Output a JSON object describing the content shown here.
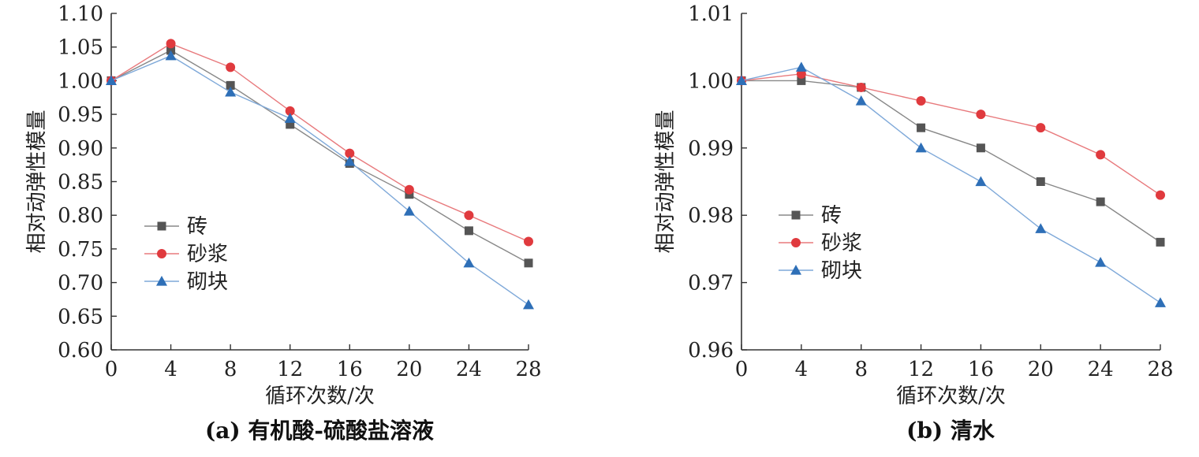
{
  "chart_data": [
    {
      "type": "line",
      "caption": "(a) 有机酸-硫酸盐溶液",
      "xlabel": "循环次数/次",
      "ylabel": "相对动弹性模量",
      "x": [
        0,
        4,
        8,
        12,
        16,
        20,
        24,
        28
      ],
      "xlim": [
        0,
        28
      ],
      "ylim": [
        0.6,
        1.1
      ],
      "xticks": [
        "0",
        "4",
        "8",
        "12",
        "16",
        "20",
        "24",
        "28"
      ],
      "yticks": [
        "0.60",
        "0.65",
        "0.70",
        "0.75",
        "0.80",
        "0.85",
        "0.90",
        "0.95",
        "1.00",
        "1.05",
        "1.10"
      ],
      "legend_position": "lower-left",
      "grid": false,
      "series": [
        {
          "name": "砖",
          "marker": "square",
          "color": "#555555",
          "line_color": "#888888",
          "values": [
            1.0,
            1.045,
            0.993,
            0.935,
            0.877,
            0.831,
            0.777,
            0.729
          ]
        },
        {
          "name": "砂浆",
          "marker": "circle",
          "color": "#e03a3e",
          "line_color": "#e87a7d",
          "values": [
            1.0,
            1.055,
            1.02,
            0.955,
            0.892,
            0.838,
            0.8,
            0.761
          ]
        },
        {
          "name": "砌块",
          "marker": "triangle",
          "color": "#2e6fb7",
          "line_color": "#7fa9d9",
          "values": [
            1.0,
            1.037,
            0.983,
            0.944,
            0.88,
            0.806,
            0.729,
            0.667
          ]
        }
      ]
    },
    {
      "type": "line",
      "caption": "(b) 清水",
      "xlabel": "循环次数/次",
      "ylabel": "相对动弹性模量",
      "x": [
        0,
        4,
        8,
        12,
        16,
        20,
        24,
        28
      ],
      "xlim": [
        0,
        28
      ],
      "ylim": [
        0.96,
        1.01
      ],
      "xticks": [
        "0",
        "4",
        "8",
        "12",
        "16",
        "20",
        "24",
        "28"
      ],
      "yticks": [
        "0.96",
        "0.97",
        "0.98",
        "0.99",
        "1.00",
        "1.01"
      ],
      "legend_position": "lower-left",
      "grid": false,
      "series": [
        {
          "name": "砖",
          "marker": "square",
          "color": "#555555",
          "line_color": "#888888",
          "values": [
            1.0,
            1.0,
            0.999,
            0.993,
            0.99,
            0.985,
            0.982,
            0.976
          ]
        },
        {
          "name": "砂浆",
          "marker": "circle",
          "color": "#e03a3e",
          "line_color": "#e87a7d",
          "values": [
            1.0,
            1.001,
            0.999,
            0.997,
            0.995,
            0.993,
            0.989,
            0.983
          ]
        },
        {
          "name": "砌块",
          "marker": "triangle",
          "color": "#2e6fb7",
          "line_color": "#7fa9d9",
          "values": [
            1.0,
            1.002,
            0.997,
            0.99,
            0.985,
            0.978,
            0.973,
            0.967
          ]
        }
      ]
    }
  ]
}
